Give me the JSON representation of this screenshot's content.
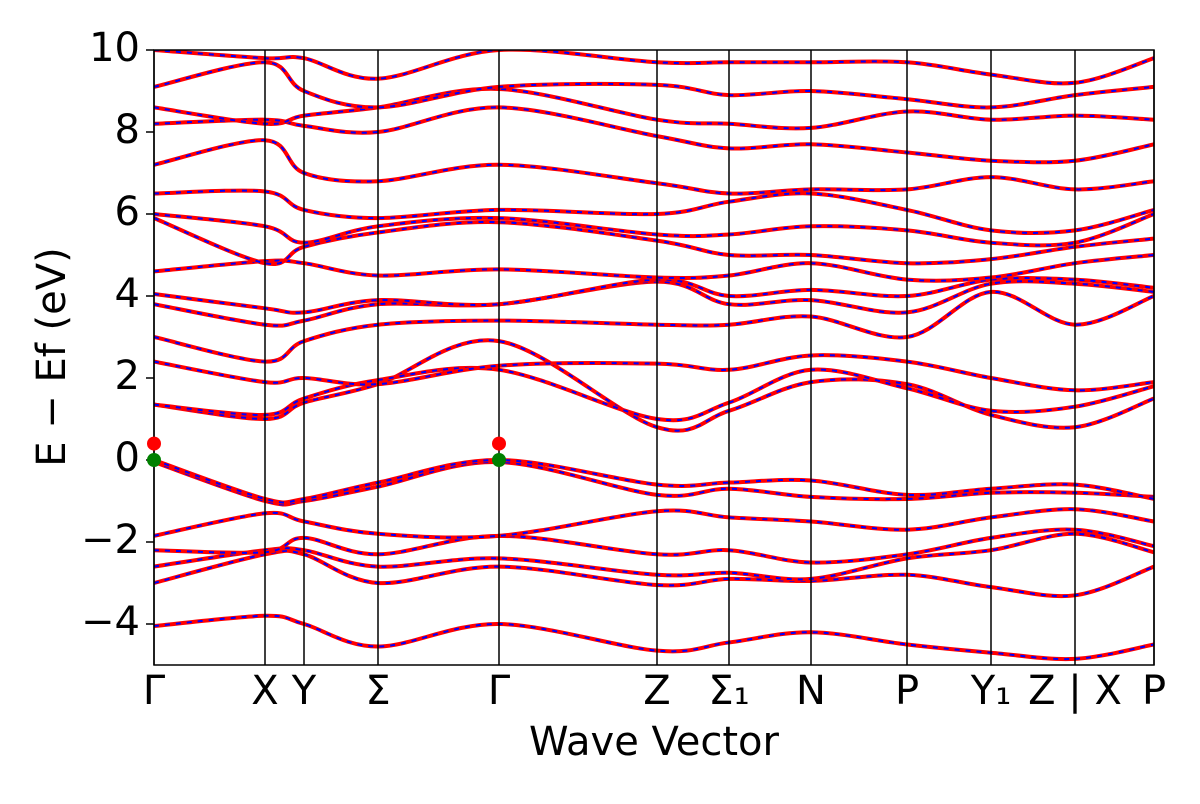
{
  "chart_data": {
    "type": "line",
    "xlabel": "Wave Vector",
    "ylabel": "E − Ef (eV)",
    "xlim": [
      0,
      1
    ],
    "ylim": [
      -5,
      10
    ],
    "xticks": [
      {
        "value": 0,
        "label": "Γ"
      },
      {
        "value": 0.111,
        "label": "X"
      },
      {
        "value": 0.15,
        "label": "Y"
      },
      {
        "value": 0.224,
        "label": "Σ"
      },
      {
        "value": 0.345,
        "label": "Γ"
      },
      {
        "value": 0.503,
        "label": "Z"
      },
      {
        "value": 0.575,
        "label": "Σ₁"
      },
      {
        "value": 0.657,
        "label": "N"
      },
      {
        "value": 0.753,
        "label": "P"
      },
      {
        "value": 0.837,
        "label": "Y₁"
      },
      {
        "value": 0.921,
        "label": "Z | X"
      },
      {
        "value": 1,
        "label": "P"
      }
    ],
    "yticks": [
      {
        "value": -4,
        "label": "−4"
      },
      {
        "value": -2,
        "label": "−2"
      },
      0,
      2,
      4,
      6,
      8,
      10
    ],
    "line_color": "#ff0000",
    "dash_color": "#0000ff",
    "bands": [
      [
        -4.05,
        -3.8,
        -4.0,
        -4.55,
        -4.0,
        -4.65,
        -4.45,
        -4.2,
        -4.5,
        -4.7,
        -4.85,
        -4.5
      ],
      [
        -3.0,
        -2.3,
        -2.3,
        -3.0,
        -2.6,
        -3.05,
        -2.9,
        -2.95,
        -2.8,
        -3.1,
        -3.3,
        -2.6
      ],
      [
        -2.6,
        -2.2,
        -2.2,
        -2.6,
        -2.4,
        -2.8,
        -2.75,
        -2.9,
        -2.4,
        -2.2,
        -1.8,
        -2.25
      ],
      [
        -2.2,
        -2.25,
        -1.9,
        -2.3,
        -1.85,
        -2.3,
        -2.2,
        -2.5,
        -2.3,
        -1.9,
        -1.7,
        -2.1
      ],
      [
        -1.85,
        -1.3,
        -1.5,
        -1.8,
        -1.85,
        -1.25,
        -1.4,
        -1.5,
        -1.7,
        -1.4,
        -1.2,
        -1.5
      ],
      [
        -0.05,
        -1.0,
        -1.0,
        -0.65,
        -0.05,
        -0.85,
        -0.7,
        -0.9,
        -0.95,
        -0.8,
        -0.8,
        -0.9
      ],
      [
        0,
        -0.95,
        -0.95,
        -0.55,
        0,
        -0.6,
        -0.55,
        -0.5,
        -0.85,
        -0.7,
        -0.6,
        -0.95
      ],
      [
        1.35,
        1.0,
        1.4,
        1.85,
        2.9,
        0.8,
        1.2,
        1.9,
        1.85,
        1.1,
        0.8,
        1.5
      ],
      [
        1.35,
        1.1,
        1.5,
        1.95,
        2.2,
        1.0,
        1.4,
        2.2,
        1.75,
        1.2,
        1.3,
        1.8
      ],
      [
        2.4,
        1.9,
        2.0,
        1.85,
        2.3,
        2.35,
        2.2,
        2.55,
        2.4,
        2.0,
        1.7,
        1.9
      ],
      [
        3.0,
        2.4,
        2.9,
        3.3,
        3.4,
        3.3,
        3.3,
        3.5,
        3.0,
        4.1,
        3.3,
        4.0
      ],
      [
        3.8,
        3.3,
        3.4,
        3.8,
        3.8,
        4.35,
        3.8,
        3.9,
        3.6,
        4.3,
        4.3,
        4.1
      ],
      [
        4.05,
        3.7,
        3.6,
        3.9,
        3.8,
        4.4,
        4.0,
        4.15,
        4.0,
        4.4,
        4.4,
        4.2
      ],
      [
        4.6,
        4.85,
        4.8,
        4.5,
        4.65,
        4.45,
        4.5,
        4.8,
        4.4,
        4.45,
        4.8,
        5.0
      ],
      [
        5.9,
        4.8,
        5.2,
        5.55,
        5.8,
        5.35,
        5.0,
        5.0,
        4.8,
        4.9,
        5.2,
        5.4
      ],
      [
        6.0,
        5.7,
        5.3,
        5.7,
        5.9,
        5.5,
        5.5,
        5.7,
        5.6,
        5.3,
        5.3,
        6.0
      ],
      [
        6.5,
        6.55,
        6.1,
        5.9,
        6.1,
        6.0,
        6.3,
        6.5,
        6.1,
        5.6,
        5.6,
        6.1
      ],
      [
        7.2,
        7.8,
        7.0,
        6.8,
        7.2,
        6.75,
        6.5,
        6.6,
        6.6,
        6.9,
        6.6,
        6.8
      ],
      [
        8.2,
        8.3,
        8.15,
        8.0,
        8.6,
        7.9,
        7.6,
        7.7,
        7.5,
        7.3,
        7.3,
        7.7
      ],
      [
        8.6,
        8.2,
        8.4,
        8.6,
        9.05,
        8.3,
        8.2,
        8.1,
        8.5,
        8.3,
        8.4,
        8.3
      ],
      [
        9.1,
        9.7,
        9.0,
        8.6,
        9.1,
        9.15,
        8.9,
        9.0,
        8.8,
        8.6,
        8.9,
        9.1
      ],
      [
        10.0,
        9.8,
        9.8,
        9.3,
        10.0,
        9.7,
        9.7,
        9.7,
        9.7,
        9.4,
        9.2,
        9.8
      ]
    ],
    "markers": [
      {
        "x": 0,
        "y": 0.4,
        "color": "#ff0000"
      },
      {
        "x": 0,
        "y": 0,
        "color": "#008000"
      },
      {
        "x": 0.345,
        "y": 0.4,
        "color": "#ff0000"
      },
      {
        "x": 0.345,
        "y": 0,
        "color": "#008000"
      }
    ]
  }
}
